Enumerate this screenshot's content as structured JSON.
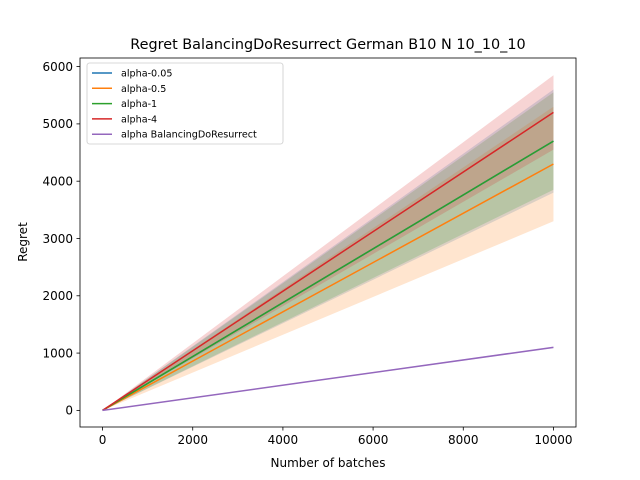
{
  "chart_data": {
    "type": "line",
    "title": "Regret BalancingDoResurrect German B10 N 10_10_10",
    "xlabel": "Number of batches",
    "ylabel": "Regret",
    "xlim": [
      -500,
      10500
    ],
    "ylim": [
      -290,
      6150
    ],
    "xticks": [
      0,
      2000,
      4000,
      6000,
      8000,
      10000
    ],
    "xtick_labels": [
      "0",
      "2000",
      "4000",
      "6000",
      "8000",
      "10000"
    ],
    "yticks": [
      0,
      1000,
      2000,
      3000,
      4000,
      5000,
      6000
    ],
    "ytick_labels": [
      "0",
      "1000",
      "2000",
      "3000",
      "4000",
      "5000",
      "6000"
    ],
    "grid": false,
    "legend_position": "top-left",
    "series": [
      {
        "name": "alpha-0.05",
        "color": "#1f77b4",
        "x": [
          0,
          10000
        ],
        "y": [
          0,
          4700
        ],
        "lower": [
          0,
          3800
        ],
        "upper": [
          0,
          5600
        ]
      },
      {
        "name": "alpha-0.5",
        "color": "#ff7f0e",
        "x": [
          0,
          10000
        ],
        "y": [
          0,
          4300
        ],
        "lower": [
          0,
          3300
        ],
        "upper": [
          0,
          5300
        ]
      },
      {
        "name": "alpha-1",
        "color": "#2ca02c",
        "x": [
          0,
          10000
        ],
        "y": [
          0,
          4700
        ],
        "lower": [
          0,
          3850
        ],
        "upper": [
          0,
          5550
        ]
      },
      {
        "name": "alpha-4",
        "color": "#d62728",
        "x": [
          0,
          10000
        ],
        "y": [
          0,
          5200
        ],
        "lower": [
          0,
          4550
        ],
        "upper": [
          0,
          5850
        ]
      },
      {
        "name": "alpha BalancingDoResurrect",
        "color": "#9467bd",
        "x": [
          0,
          10000
        ],
        "y": [
          0,
          1100
        ],
        "lower": [
          0,
          1085
        ],
        "upper": [
          0,
          1115
        ]
      }
    ]
  }
}
